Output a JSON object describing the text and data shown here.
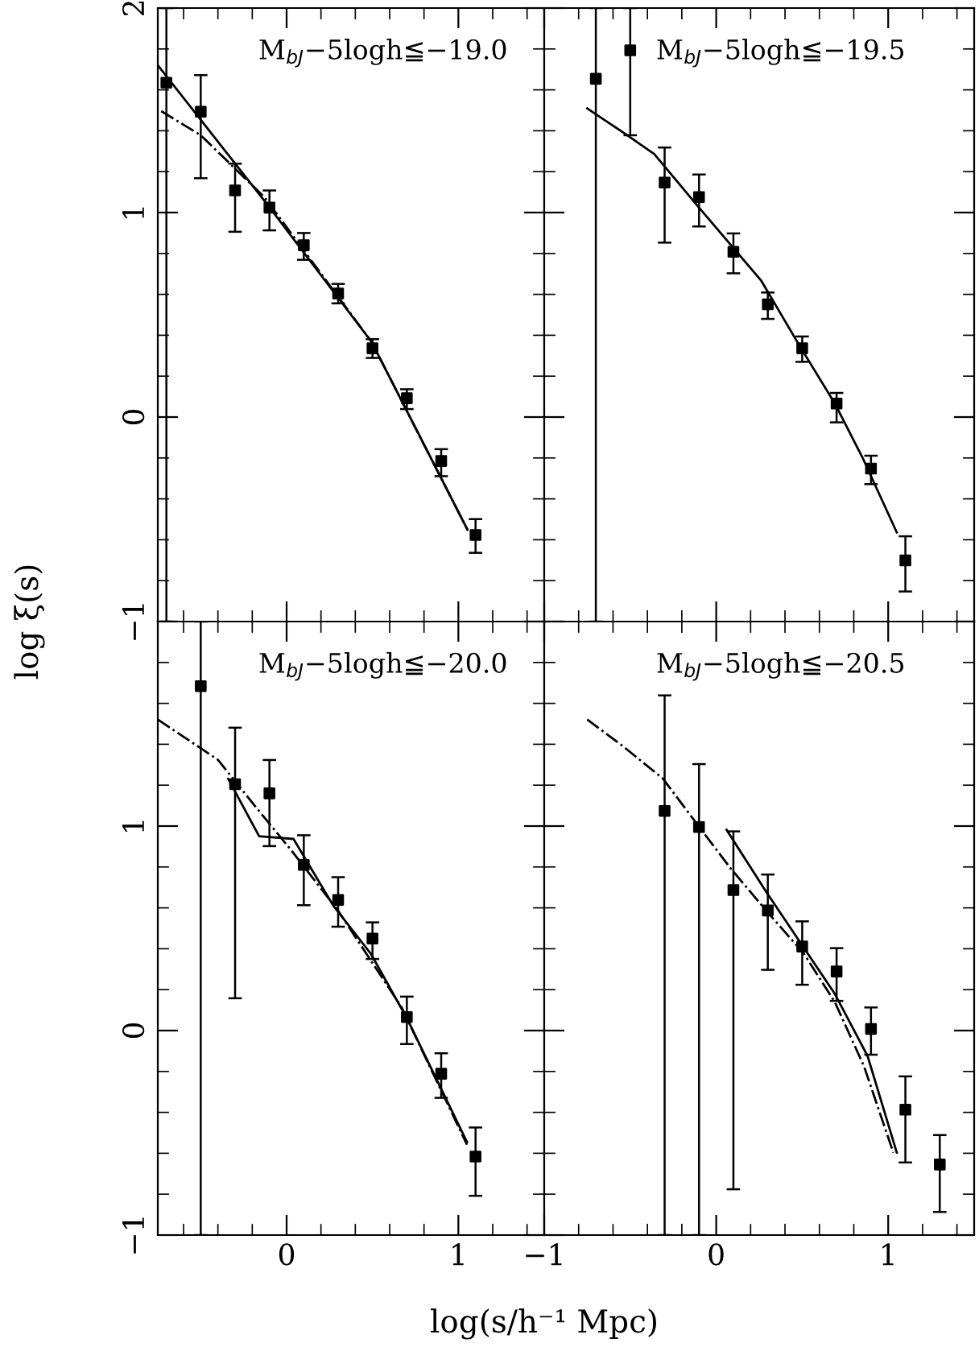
{
  "chart_data": [
    {
      "type": "scatter",
      "annotations": [
        "M$_{bJ}$−5logh≦−19.0"
      ],
      "ylabel": "log ξ(s)",
      "xlim": [
        -0.75,
        1.5
      ],
      "ylim": [
        -1,
        2
      ],
      "xticks": [
        0,
        1
      ],
      "yticks": [
        -1,
        0,
        1,
        2
      ],
      "tick_labels": "y",
      "grid": false,
      "legend": false,
      "series": [
        {
          "type": "scatter",
          "marker": "square",
          "color": "#000000",
          "x": [
            -0.7,
            -0.5,
            -0.3,
            -0.1,
            0.1,
            0.3,
            0.5,
            0.7,
            0.9,
            1.1
          ],
          "values": [
            1.635,
            1.493,
            1.108,
            1.024,
            0.84,
            0.604,
            0.336,
            0.092,
            -0.215,
            -0.577
          ],
          "errors": [
            [
              -1,
              2
            ],
            [
              1.168,
              1.672
            ],
            [
              0.906,
              1.239
            ],
            [
              0.913,
              1.108
            ],
            [
              0.769,
              0.9
            ],
            [
              0.556,
              0.651
            ],
            [
              0.289,
              0.381
            ],
            [
              0.039,
              0.136
            ],
            [
              -0.289,
              -0.157
            ],
            [
              -0.664,
              -0.499
            ]
          ]
        },
        {
          "type": "line",
          "line_style": "solid",
          "color": "#000000",
          "x": [
            -0.75,
            -0.11,
            0.495,
            1.053
          ],
          "values": [
            1.72,
            1.037,
            0.367,
            -0.551
          ]
        },
        {
          "type": "line",
          "line_style": "dashdot",
          "color": "#000000",
          "x": [
            -0.73,
            -0.5,
            -0.13,
            0.495,
            1.053
          ],
          "values": [
            1.496,
            1.378,
            1.076,
            0.367,
            -0.551
          ]
        }
      ]
    },
    {
      "type": "scatter",
      "annotations": [
        "M$_{bJ}$−5logh≦−19.5"
      ],
      "xlim": [
        -1,
        1.5
      ],
      "ylim": [
        -1,
        2
      ],
      "xticks": [
        -1,
        0,
        1
      ],
      "yticks": [
        -1,
        0,
        1,
        2
      ],
      "tick_labels": false,
      "grid": false,
      "legend": false,
      "series": [
        {
          "type": "scatter",
          "marker": "square",
          "color": "#000000",
          "x": [
            -0.7,
            -0.5,
            -0.3,
            -0.1,
            0.1,
            0.3,
            0.5,
            0.7,
            0.9,
            1.1
          ],
          "values": [
            1.654,
            1.793,
            1.147,
            1.076,
            0.808,
            0.551,
            0.336,
            0.066,
            -0.252,
            -0.701
          ],
          "errors": [
            [
              -1,
              2
            ],
            [
              1.378,
              2
            ],
            [
              0.853,
              1.318
            ],
            [
              0.932,
              1.186
            ],
            [
              0.703,
              0.898
            ],
            [
              0.48,
              0.609
            ],
            [
              0.27,
              0.394
            ],
            [
              -0.026,
              0.118
            ],
            [
              -0.328,
              -0.189
            ],
            [
              -0.853,
              -0.583
            ]
          ]
        },
        {
          "type": "line",
          "line_style": "solid",
          "color": "#000000",
          "x": [
            -0.75,
            -0.54,
            -0.36,
            -0.1,
            0.26,
            0.49,
            0.69,
            0.85,
            1.05
          ],
          "values": [
            1.509,
            1.391,
            1.286,
            1.024,
            0.669,
            0.341,
            0.066,
            -0.197,
            -0.564
          ]
        }
      ]
    },
    {
      "type": "scatter",
      "annotations": [
        "M$_{bJ}$−5logh≦−20.0"
      ],
      "xlabel": "log(s/h⁻¹ Mpc)",
      "xlim": [
        -0.75,
        1.5
      ],
      "ylim": [
        -1,
        2
      ],
      "xticks": [
        0,
        1
      ],
      "yticks": [
        -1,
        0,
        1,
        {
          "value": 2,
          "label": null
        }
      ],
      "grid": false,
      "legend": false,
      "series": [
        {
          "type": "scatter",
          "marker": "square",
          "color": "#000000",
          "x": [
            -0.5,
            -0.3,
            -0.1,
            0.1,
            0.3,
            0.5,
            0.7,
            0.9,
            1.1
          ],
          "values": [
            1.684,
            1.205,
            1.16,
            0.81,
            0.639,
            0.45,
            0.066,
            -0.211,
            -0.616
          ],
          "errors": [
            [
              -1,
              2
            ],
            [
              0.158,
              1.481
            ],
            [
              0.902,
              1.323
            ],
            [
              0.613,
              0.955
            ],
            [
              0.508,
              0.75
            ],
            [
              0.35,
              0.529
            ],
            [
              -0.066,
              0.166
            ],
            [
              -0.329,
              -0.111
            ],
            [
              -0.808,
              -0.474
            ]
          ]
        },
        {
          "type": "line",
          "line_style": "solid",
          "color": "#000000",
          "x": [
            -0.34,
            -0.16,
            0.04,
            0.27,
            0.49,
            0.7,
            1.05
          ],
          "values": [
            1.231,
            0.95,
            0.937,
            0.613,
            0.376,
            0.061,
            -0.545
          ]
        },
        {
          "type": "line",
          "line_style": "dashdot",
          "color": "#000000",
          "x": [
            -0.75,
            -0.4,
            -0.16,
            0.02,
            0.3,
            0.67,
            1.05
          ],
          "values": [
            1.521,
            1.324,
            1.073,
            0.889,
            0.586,
            0.113,
            -0.558
          ]
        }
      ]
    },
    {
      "type": "scatter",
      "annotations": [
        "M$_{bJ}$−5logh≦−20.5"
      ],
      "xlim": [
        -1,
        1.5
      ],
      "ylim": [
        -1,
        2
      ],
      "xticks": [
        -1,
        0,
        1
      ],
      "yticks": [
        -1,
        0,
        1,
        2
      ],
      "tick_labels": "x",
      "grid": false,
      "legend": false,
      "series": [
        {
          "type": "scatter",
          "marker": "square",
          "color": "#000000",
          "x": [
            -0.3,
            -0.1,
            0.1,
            0.3,
            0.5,
            0.7,
            0.9,
            1.1,
            1.3
          ],
          "values": [
            1.074,
            0.995,
            0.687,
            0.587,
            0.411,
            0.289,
            0.008,
            -0.387,
            -0.655
          ],
          "errors": [
            [
              -1,
              1.639
            ],
            [
              -1,
              1.303
            ],
            [
              -0.776,
              0.974
            ],
            [
              0.297,
              0.763
            ],
            [
              0.224,
              0.534
            ],
            [
              0.145,
              0.403
            ],
            [
              -0.118,
              0.113
            ],
            [
              -0.645,
              -0.224
            ],
            [
              -0.887,
              -0.511
            ]
          ]
        },
        {
          "type": "line",
          "line_style": "solid",
          "color": "#000000",
          "x": [
            0.06,
            0.29,
            0.49,
            0.69,
            0.88,
            1.05
          ],
          "values": [
            0.982,
            0.679,
            0.429,
            0.179,
            -0.124,
            -0.597
          ]
        },
        {
          "type": "line",
          "line_style": "dashdot",
          "color": "#000000",
          "x": [
            -0.75,
            -0.54,
            -0.31,
            -0.11,
            0.08,
            0.29,
            0.51,
            0.69,
            0.86,
            1.03
          ],
          "values": [
            1.521,
            1.389,
            1.232,
            1.008,
            0.797,
            0.587,
            0.376,
            0.139,
            -0.176,
            -0.597
          ]
        }
      ]
    }
  ]
}
